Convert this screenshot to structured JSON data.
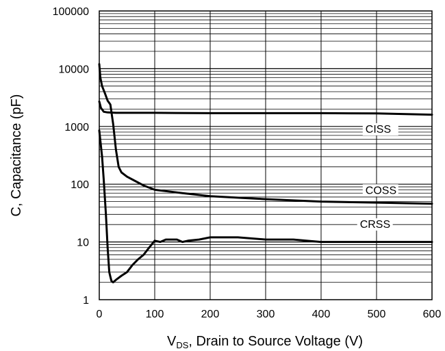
{
  "chart_data": {
    "type": "line",
    "xlabel_main": "V",
    "xlabel_sub": "DS",
    "xlabel_rest": ", Drain to Source Voltage (V)",
    "ylabel": "C, Capacitance (pF)",
    "xlim": [
      0,
      600
    ],
    "ylim": [
      1,
      100000
    ],
    "yscale": "log",
    "grid": true,
    "x_ticks": [
      "0",
      "100",
      "200",
      "300",
      "400",
      "500",
      "600"
    ],
    "y_ticks": [
      "1",
      "10",
      "100",
      "1000",
      "10000",
      "100000"
    ],
    "series": [
      {
        "name": "CISS",
        "x": [
          0,
          3,
          8,
          15,
          30,
          50,
          100,
          200,
          300,
          400,
          500,
          600
        ],
        "y": [
          2700,
          2100,
          1800,
          1750,
          1720,
          1720,
          1720,
          1700,
          1700,
          1700,
          1680,
          1600
        ]
      },
      {
        "name": "COSS",
        "x": [
          0,
          2,
          5,
          10,
          15,
          20,
          25,
          30,
          35,
          40,
          50,
          60,
          80,
          100,
          150,
          200,
          300,
          400,
          500,
          600
        ],
        "y": [
          12000,
          7000,
          5000,
          3800,
          2800,
          2400,
          1100,
          400,
          200,
          160,
          135,
          120,
          95,
          80,
          70,
          62,
          55,
          50,
          48,
          46
        ]
      },
      {
        "name": "CRSS",
        "x": [
          0,
          5,
          8,
          12,
          15,
          18,
          20,
          22,
          25,
          30,
          40,
          50,
          60,
          70,
          80,
          90,
          100,
          110,
          120,
          140,
          150,
          160,
          180,
          200,
          250,
          300,
          350,
          400,
          500,
          600
        ],
        "y": [
          850,
          300,
          120,
          30,
          8,
          3,
          2.5,
          2.1,
          2,
          2.2,
          2.6,
          3,
          4,
          5,
          6,
          8,
          10.5,
          10,
          11,
          11,
          10,
          10.5,
          11,
          12,
          12,
          11,
          11,
          10,
          10,
          10
        ]
      }
    ]
  }
}
